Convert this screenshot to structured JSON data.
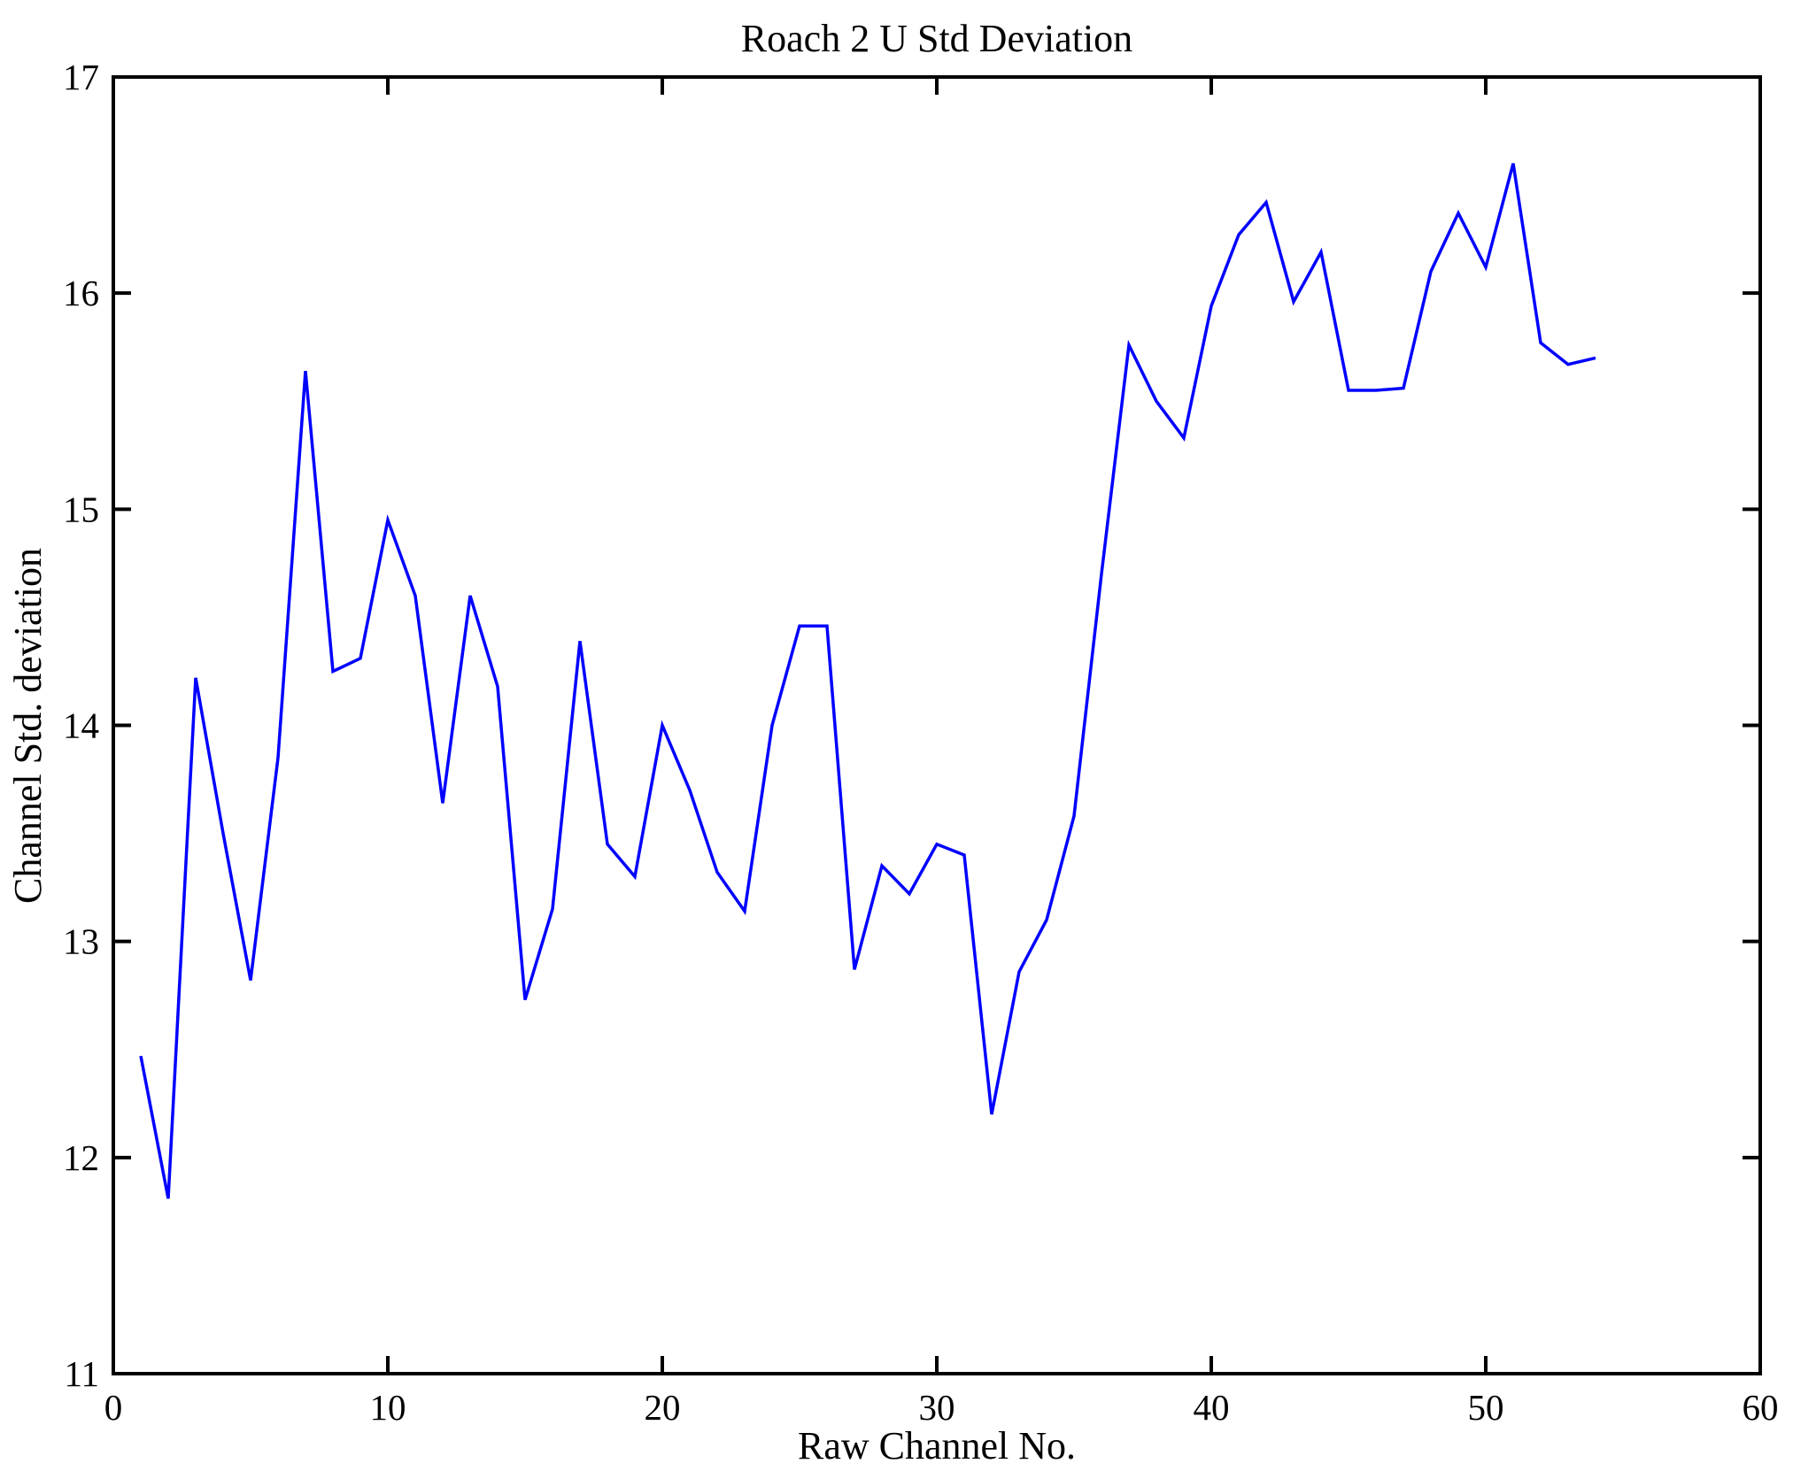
{
  "chart_data": {
    "type": "line",
    "title": "Roach 2 U Std Deviation",
    "xlabel": "Raw Channel No.",
    "ylabel": "Channel Std. deviation",
    "xlim": [
      0,
      60
    ],
    "ylim": [
      11,
      17
    ],
    "x_ticks": [
      0,
      10,
      20,
      30,
      40,
      50,
      60
    ],
    "y_ticks": [
      11,
      12,
      13,
      14,
      15,
      16,
      17
    ],
    "grid": false,
    "legend": null,
    "line_color": "#0000FF",
    "axis_color": "#000000",
    "series": [
      {
        "name": "Channel Std. deviation",
        "x": [
          1,
          2,
          3,
          4,
          5,
          6,
          7,
          8,
          9,
          10,
          11,
          12,
          13,
          14,
          15,
          16,
          17,
          18,
          19,
          20,
          21,
          22,
          23,
          24,
          25,
          26,
          27,
          28,
          29,
          30,
          31,
          32,
          33,
          34,
          35,
          36,
          37,
          38,
          39,
          40,
          41,
          42,
          43,
          44,
          45,
          46,
          47,
          48,
          49,
          50,
          51,
          52,
          53,
          54
        ],
        "values": [
          12.47,
          11.81,
          14.22,
          13.5,
          12.82,
          13.85,
          15.64,
          14.25,
          14.31,
          14.95,
          14.6,
          13.64,
          14.6,
          14.18,
          12.73,
          13.15,
          14.39,
          13.45,
          13.3,
          14.0,
          13.7,
          13.32,
          13.14,
          14.0,
          14.46,
          14.46,
          12.87,
          13.35,
          13.22,
          13.45,
          13.4,
          12.2,
          12.86,
          13.1,
          13.58,
          14.7,
          15.76,
          15.5,
          15.33,
          15.94,
          16.27,
          16.42,
          15.96,
          16.19,
          15.55,
          15.55,
          15.56,
          16.1,
          16.37,
          16.12,
          16.6,
          15.77,
          15.67,
          15.7
        ]
      }
    ]
  }
}
